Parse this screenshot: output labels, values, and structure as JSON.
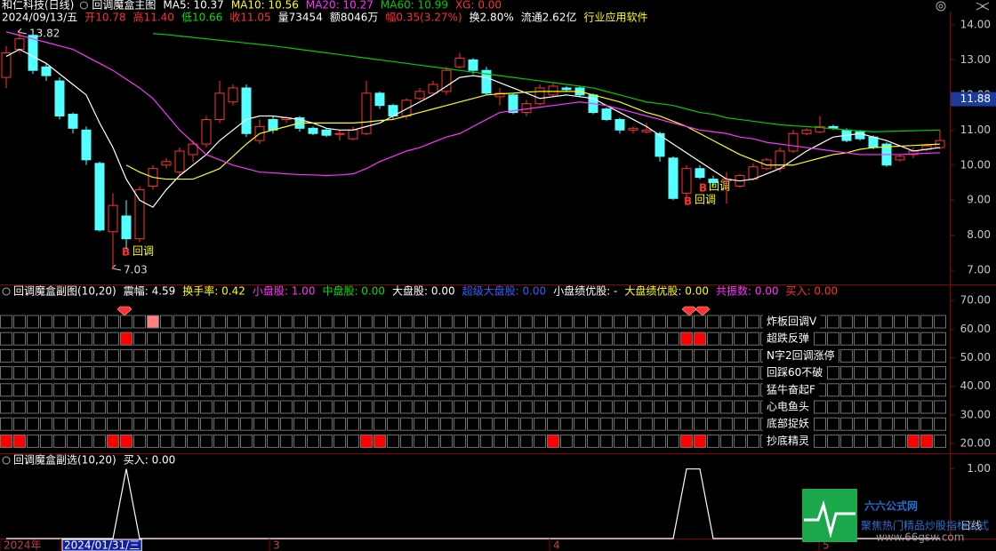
{
  "chart_data": [
    {
      "type": "candlestick",
      "stock": "和仁科技(日线)",
      "title": "回调魔盒主图",
      "series": [
        {
          "name": "MA5: 10.37",
          "color": "#ffffff",
          "values": [
            13.1,
            13.3,
            13.1,
            12.9,
            12.6,
            12.3,
            12.0,
            11.2,
            10.5,
            9.6,
            9.0,
            8.8,
            9.3,
            9.7,
            10.0,
            10.3,
            10.7,
            11.0,
            11.3,
            11.4,
            11.4,
            11.35,
            11.3,
            11.2,
            11.05,
            11.0,
            11.0,
            11.1,
            11.2,
            11.4,
            11.6,
            11.8,
            12.0,
            12.25,
            12.5,
            12.55,
            12.5,
            12.35,
            12.2,
            12.05,
            11.9,
            11.95,
            12.0,
            11.95,
            11.9,
            11.7,
            11.5,
            11.3,
            11.1,
            10.85,
            10.6,
            10.35,
            10.1,
            9.85,
            9.6,
            9.55,
            9.6,
            9.75,
            9.9,
            10.15,
            10.4,
            10.6,
            10.8,
            10.85,
            10.9,
            10.8,
            10.7,
            10.55,
            10.4,
            10.45,
            10.5
          ]
        },
        {
          "name": "MA10: 10.56",
          "color": "#ffff00",
          "values": [
            null,
            null,
            null,
            null,
            null,
            null,
            null,
            null,
            null,
            10.0,
            9.8,
            9.65,
            9.6,
            9.6,
            9.6,
            9.75,
            9.9,
            10.25,
            10.6,
            10.9,
            11.0,
            11.1,
            11.2,
            11.2,
            11.2,
            11.2,
            11.2,
            11.23,
            11.27,
            11.3,
            11.4,
            11.5,
            11.6,
            11.7,
            11.8,
            11.9,
            12.0,
            12.03,
            12.05,
            12.08,
            12.1,
            12.1,
            12.1,
            12.1,
            12.0,
            11.9,
            11.8,
            11.65,
            11.5,
            11.4,
            11.25,
            11.1,
            10.9,
            10.7,
            10.5,
            10.3,
            10.15,
            10.0,
            10.0,
            10.0,
            10.1,
            10.2,
            10.3,
            10.35,
            10.45,
            10.5,
            10.52,
            10.54,
            10.56,
            10.58,
            10.6
          ]
        },
        {
          "name": "MA20: 10.27",
          "color": "#ff33ff",
          "values": [
            13.8,
            13.7,
            13.6,
            13.5,
            13.4,
            13.3,
            13.1,
            12.9,
            12.7,
            12.45,
            12.2,
            11.9,
            11.45,
            11.0,
            10.65,
            10.3,
            10.15,
            10.0,
            9.9,
            9.8,
            9.78,
            9.75,
            9.73,
            9.72,
            9.7,
            9.72,
            9.75,
            9.9,
            10.1,
            10.25,
            10.4,
            10.5,
            10.65,
            10.8,
            10.9,
            11.1,
            11.3,
            11.5,
            11.55,
            11.6,
            11.65,
            11.7,
            11.75,
            11.8,
            11.75,
            11.7,
            11.6,
            11.5,
            11.4,
            11.3,
            11.2,
            11.1,
            11.0,
            10.95,
            10.9,
            10.8,
            10.75,
            10.65,
            10.6,
            10.55,
            10.5,
            10.45,
            10.4,
            10.35,
            10.3,
            10.3,
            10.3,
            10.3,
            10.32,
            10.34,
            10.35
          ]
        },
        {
          "name": "MA60: 10.99",
          "color": "#00cc00",
          "values": [
            null,
            null,
            null,
            null,
            null,
            null,
            null,
            null,
            null,
            null,
            null,
            13.75,
            13.72,
            13.68,
            13.64,
            13.6,
            13.56,
            13.52,
            13.48,
            13.44,
            13.4,
            13.35,
            13.3,
            13.25,
            13.2,
            13.15,
            13.1,
            13.05,
            13.0,
            12.95,
            12.9,
            12.85,
            12.8,
            12.75,
            12.7,
            12.65,
            12.6,
            12.55,
            12.5,
            12.45,
            12.4,
            12.35,
            12.3,
            12.25,
            12.2,
            12.1,
            12.0,
            11.9,
            11.8,
            11.75,
            11.7,
            11.6,
            11.5,
            11.45,
            11.35,
            11.3,
            11.25,
            11.2,
            11.15,
            11.12,
            11.1,
            11.07,
            11.04,
            11.0,
            10.98,
            10.95,
            10.96,
            10.97,
            10.98,
            10.99,
            11.0
          ]
        }
      ],
      "indicators": [
        {
          "text": "XG: 0.00",
          "color": "#ff3030"
        }
      ],
      "info": [
        {
          "text": "2024/09/13/五",
          "color": "#ffffff"
        },
        {
          "text": "开10.78",
          "color": "#ff3030"
        },
        {
          "text": "高11.40",
          "color": "#ff3030"
        },
        {
          "text": "低10.66",
          "color": "#00e000"
        },
        {
          "text": "收11.05",
          "color": "#ff3030"
        },
        {
          "text": "量73454",
          "color": "#ffffff"
        },
        {
          "text": "额8046万",
          "color": "#ffffff"
        },
        {
          "text": "幅0.35(3.27%)",
          "color": "#ff3030"
        },
        {
          "text": "换2.80%",
          "color": "#ffffff"
        },
        {
          "text": "流通2.62亿",
          "color": "#ffffff"
        },
        {
          "text": "行业应用软件",
          "color": "#ffff00"
        }
      ],
      "ohlc": {
        "open": [
          12.5,
          13.3,
          13.7,
          12.8,
          12.4,
          11.45,
          11.0,
          10.05,
          8.1,
          8.55,
          7.9,
          9.4,
          10.0,
          9.8,
          10.3,
          10.6,
          11.3,
          11.8,
          12.2,
          10.7,
          11.3,
          11.3,
          11.35,
          11.05,
          11.0,
          10.9,
          10.75,
          10.9,
          12.05,
          11.7,
          11.4,
          11.9,
          12.05,
          12.1,
          12.8,
          13.0,
          12.7,
          11.95,
          12.0,
          11.5,
          11.75,
          12.0,
          12.2,
          12.2,
          12.0,
          11.6,
          11.3,
          11.0,
          10.95,
          10.9,
          10.2,
          9.2,
          9.9,
          9.6,
          9.55,
          9.4,
          9.6,
          9.9,
          9.9,
          10.4,
          10.9,
          10.95,
          11.1,
          11.0,
          10.95,
          10.8,
          10.6,
          10.15,
          10.3,
          10.45,
          10.5
        ],
        "high": [
          13.4,
          13.82,
          13.8,
          12.9,
          12.5,
          11.5,
          11.1,
          10.1,
          9.2,
          9.0,
          9.4,
          10.0,
          10.2,
          10.5,
          10.7,
          11.4,
          12.4,
          12.3,
          12.3,
          11.3,
          11.4,
          11.4,
          11.4,
          11.1,
          11.05,
          11.0,
          11.1,
          12.4,
          12.1,
          11.75,
          11.9,
          12.2,
          12.4,
          12.8,
          13.2,
          13.05,
          12.8,
          12.2,
          12.05,
          11.85,
          12.3,
          12.35,
          12.25,
          12.25,
          12.05,
          11.65,
          11.35,
          11.1,
          11.2,
          10.95,
          10.25,
          10.0,
          10.0,
          9.7,
          9.8,
          9.75,
          10.05,
          10.2,
          10.5,
          11.0,
          11.05,
          11.4,
          11.15,
          11.05,
          11.0,
          10.85,
          10.65,
          10.3,
          10.5,
          10.6,
          11.0
        ],
        "low": [
          12.2,
          13.2,
          12.6,
          12.4,
          11.3,
          10.9,
          10.0,
          8.1,
          7.03,
          7.6,
          7.8,
          9.3,
          9.9,
          9.7,
          10.1,
          10.5,
          11.2,
          11.7,
          10.8,
          10.6,
          10.9,
          11.2,
          10.95,
          10.85,
          10.8,
          10.7,
          10.7,
          10.85,
          11.6,
          11.3,
          11.3,
          11.85,
          12.0,
          12.0,
          12.75,
          12.6,
          12.0,
          11.7,
          11.45,
          11.4,
          11.7,
          11.95,
          12.1,
          11.95,
          11.45,
          11.25,
          10.9,
          10.9,
          10.9,
          10.1,
          9.0,
          9.1,
          9.6,
          9.4,
          8.9,
          9.35,
          9.55,
          9.85,
          9.8,
          10.35,
          10.85,
          10.9,
          11.0,
          10.65,
          10.7,
          10.45,
          9.95,
          10.1,
          10.2,
          10.4,
          10.45
        ],
        "close": [
          13.2,
          13.6,
          12.7,
          12.55,
          11.4,
          11.05,
          10.15,
          8.15,
          8.85,
          7.9,
          9.3,
          9.9,
          10.1,
          10.4,
          10.6,
          11.3,
          12.05,
          12.2,
          10.9,
          11.1,
          11.0,
          11.35,
          11.05,
          10.9,
          10.85,
          10.9,
          11.0,
          12.05,
          11.7,
          11.4,
          11.85,
          12.1,
          12.3,
          12.7,
          13.05,
          12.7,
          12.05,
          12.05,
          11.5,
          11.75,
          12.2,
          12.25,
          12.15,
          12.0,
          11.5,
          11.3,
          11.0,
          11.05,
          11.0,
          10.25,
          9.05,
          9.9,
          9.65,
          9.5,
          9.6,
          9.7,
          9.95,
          10.15,
          10.4,
          10.9,
          11.0,
          11.1,
          11.05,
          10.7,
          10.75,
          10.5,
          10.0,
          10.25,
          10.4,
          10.55,
          10.7
        ]
      },
      "up_color": "#ff3232",
      "down_color": "#54ffff",
      "ylim": [
        6.65,
        14.2
      ],
      "yticks": [
        {
          "value": 7,
          "label": "7.00"
        },
        {
          "value": 8,
          "label": "8.00"
        },
        {
          "value": 9,
          "label": "9.00"
        },
        {
          "value": 10,
          "label": "10.00"
        },
        {
          "value": 11,
          "label": "11.00"
        },
        {
          "value": 12,
          "label": "12.00"
        },
        {
          "value": 13,
          "label": "13.00"
        },
        {
          "value": 14,
          "label": "14.00"
        }
      ],
      "price_marker": 11.88,
      "annotations": [
        "13.82",
        "7.03"
      ],
      "signal_labels": [
        "回调",
        "回调",
        "回调"
      ],
      "signal_icon": "B"
    },
    {
      "type": "signals",
      "title": "回调魔盒副图(10,20)",
      "info": [
        {
          "text": "震幅: 4.59",
          "color": "#ffffff"
        },
        {
          "text": "换手率: 0.42",
          "color": "#ffff00"
        },
        {
          "text": "小盘股: 1.00",
          "color": "#ff33ff"
        },
        {
          "text": "中盘股: 0.00",
          "color": "#00e000"
        },
        {
          "text": "大盘股: 0.00",
          "color": "#ffffff"
        },
        {
          "text": "超级大盘股: 0.00",
          "color": "#3060ff"
        },
        {
          "text": "小盘绩优股: -",
          "color": "#ffffff"
        },
        {
          "text": "大盘绩优股: 0.00",
          "color": "#ffff00"
        },
        {
          "text": "共振数: 0.00",
          "color": "#ff33ff"
        },
        {
          "text": "买入: 0.00",
          "color": "#ff3030"
        }
      ],
      "rows": [
        {
          "name": "炸板回调V",
          "color": "#ff8080",
          "signals": [
            11
          ]
        },
        {
          "name": "超跌反弹",
          "color": "#ff0000",
          "signals": [
            9,
            51,
            52
          ]
        },
        {
          "name": "N字2回调涨停",
          "color": "#ff0000",
          "signals": []
        },
        {
          "name": "回踩60不破",
          "color": "#ff0000",
          "signals": []
        },
        {
          "name": "猛牛奋起F",
          "color": "#ff0000",
          "signals": []
        },
        {
          "name": "心电鱼头",
          "color": "#ff0000",
          "signals": []
        },
        {
          "name": "底部捉妖",
          "color": "#ff0000",
          "signals": []
        },
        {
          "name": "抄底精灵",
          "color": "#ff0000",
          "signals": [
            0,
            1,
            8,
            9,
            27,
            28,
            41,
            51,
            52,
            68,
            69
          ]
        }
      ],
      "ylim": [
        16.6,
        75
      ],
      "yticks": [
        {
          "value": 20,
          "label": "20.00"
        },
        {
          "value": 30,
          "label": "30.00"
        },
        {
          "value": 40,
          "label": "40.00"
        },
        {
          "value": 50,
          "label": "50.00"
        },
        {
          "value": 60,
          "label": "60.00"
        },
        {
          "value": 70,
          "label": "70.00"
        }
      ]
    },
    {
      "type": "line",
      "title": "回调魔盒副选(10,20)",
      "info": [
        {
          "text": "买入: 0.00",
          "color": "#ffffff"
        }
      ],
      "series": [
        {
          "color": "#ffffff",
          "values": [
            0,
            0,
            0,
            0,
            0,
            0,
            0,
            0,
            0,
            1,
            0,
            0,
            0,
            0,
            0,
            0,
            0,
            0,
            0,
            0,
            0,
            0,
            0,
            0,
            0,
            0,
            0,
            0,
            0,
            0,
            0,
            0,
            0,
            0,
            0,
            0,
            0,
            0,
            0,
            0,
            0,
            0,
            0,
            0,
            0,
            0,
            0,
            0,
            0,
            0,
            0,
            1,
            1,
            0,
            0,
            0,
            0,
            0,
            0,
            0,
            0,
            0,
            0,
            0,
            0,
            0,
            0,
            0,
            0,
            0,
            0
          ]
        }
      ],
      "ylim": [
        0,
        1.2
      ],
      "yticks": [
        {
          "value": 1,
          "label": "1.00"
        }
      ],
      "period": "日线",
      "x_labels": [
        "2024年",
        "2024/01/31/三",
        "3",
        "4",
        "5"
      ]
    }
  ],
  "watermark": {
    "title": "六六公式网",
    "slogan": "聚焦热门精品炒股指标公式",
    "url": "www.66gsw.com"
  }
}
